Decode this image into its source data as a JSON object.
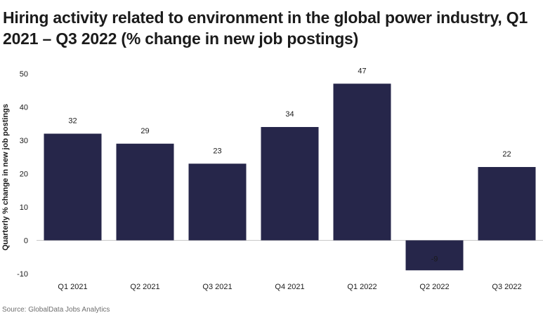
{
  "chart_data": {
    "type": "bar",
    "title": "Hiring activity related to environment in the global power industry, Q1 2021 – Q3 2022 (% change in new job postings)",
    "ylabel": "Quarterly % change in new job postings",
    "xlabel": "",
    "categories": [
      "Q1 2021",
      "Q2 2021",
      "Q3 2021",
      "Q4 2021",
      "Q1 2022",
      "Q2 2022",
      "Q3 2022"
    ],
    "values": [
      32,
      29,
      23,
      34,
      47,
      -9,
      22
    ],
    "data_labels": [
      "32",
      "29",
      "23",
      "34",
      "47",
      "-9",
      "22"
    ],
    "ylim": [
      -10,
      50
    ],
    "yticks": [
      50,
      40,
      30,
      20,
      10,
      0,
      -10
    ],
    "ytick_labels": [
      "50",
      "40",
      "30",
      "20",
      "10",
      "0",
      "-10"
    ],
    "grid": false,
    "legend": "none",
    "colors": {
      "bar": "#26264a",
      "zero_line": "#c8c8c8"
    }
  },
  "source": "Source: GlobalData Jobs Analytics"
}
